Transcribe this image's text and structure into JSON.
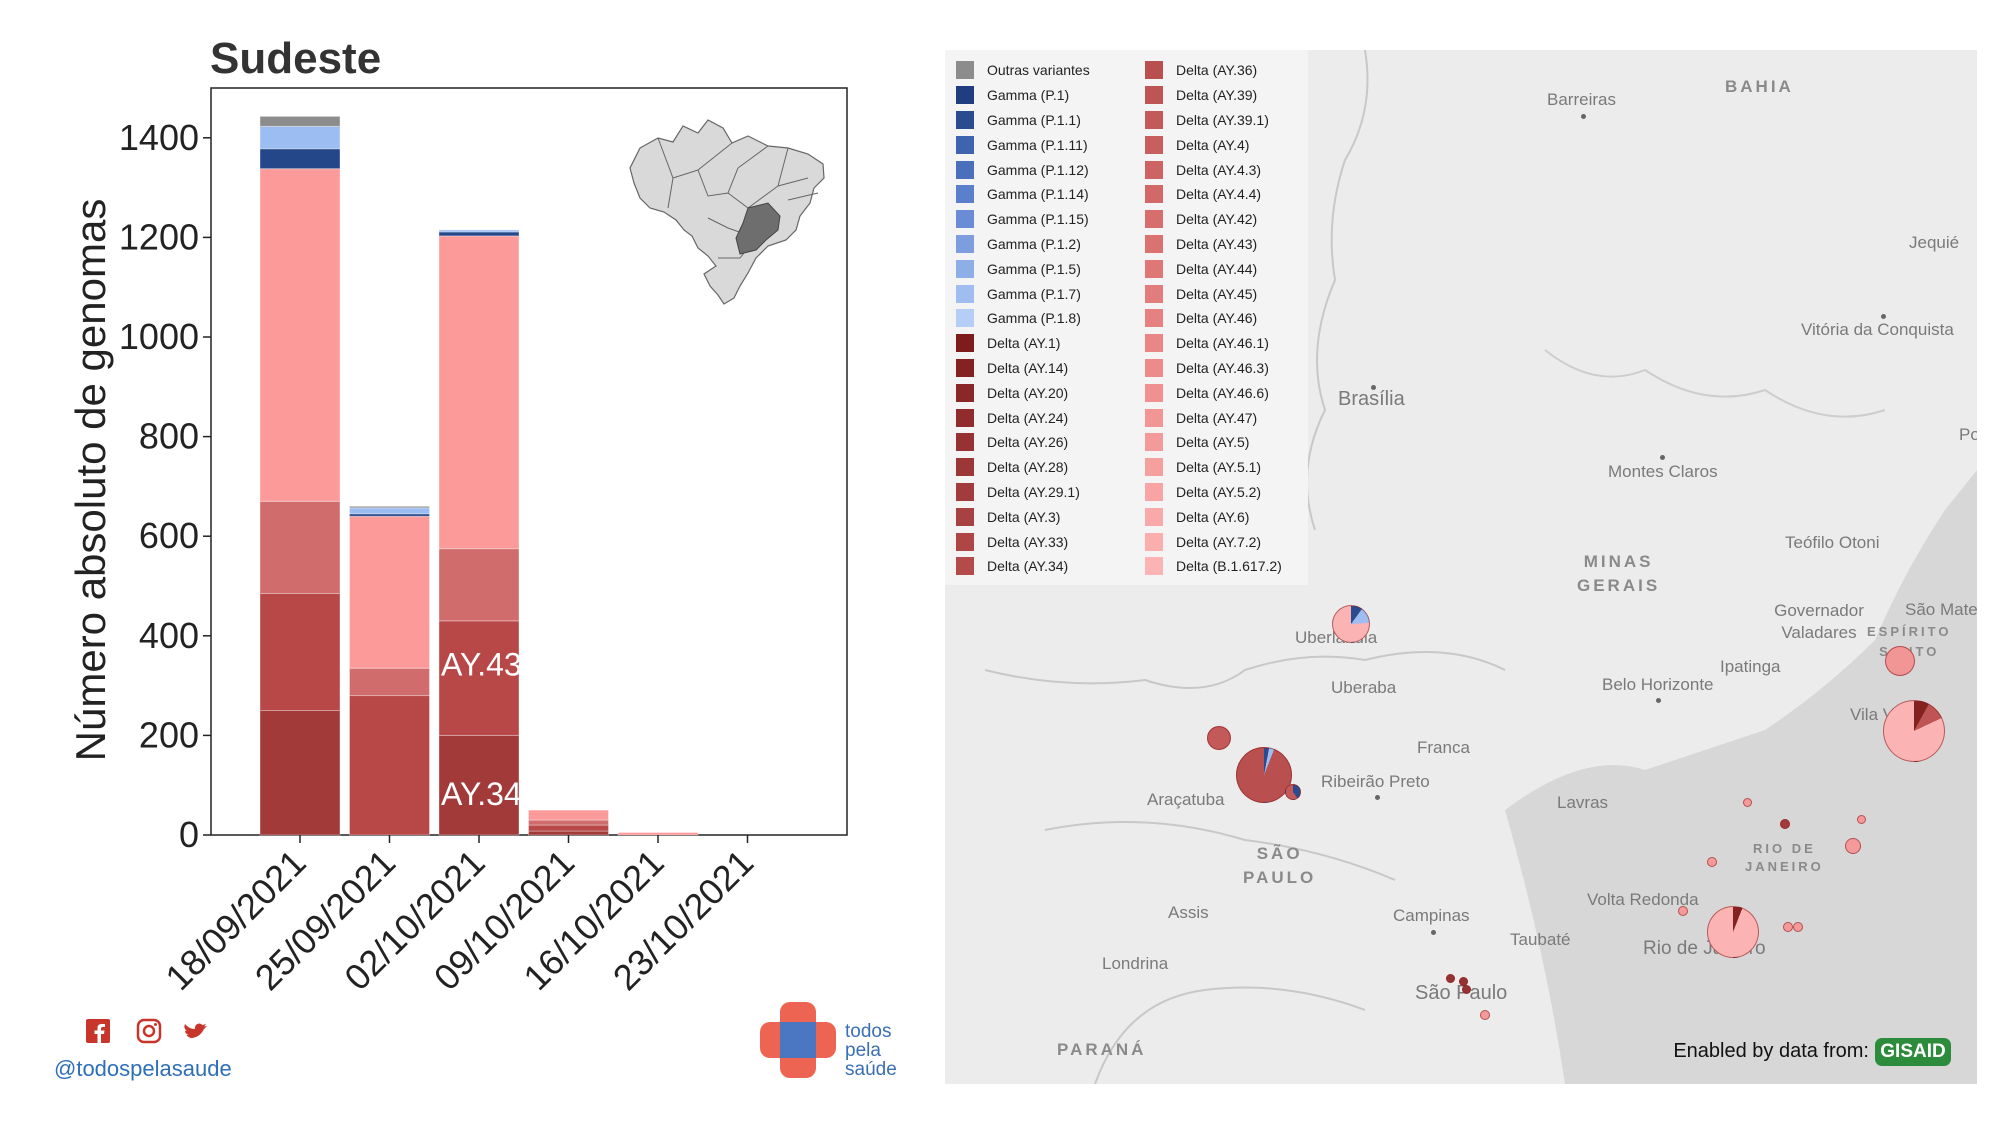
{
  "chart_data": {
    "type": "bar",
    "title": "Sudeste",
    "ylabel": "Número absoluto de genomas",
    "xlabel": "",
    "ylim": [
      0,
      1500
    ],
    "yticks": [
      "0",
      "200",
      "400",
      "600",
      "800",
      "1000",
      "1200",
      "1400"
    ],
    "categories": [
      "18/09/2021",
      "25/09/2021",
      "02/10/2021",
      "09/10/2021",
      "16/10/2021",
      "23/10/2021"
    ],
    "series": [
      {
        "name": "Delta (AY.34)",
        "color": "#a23a3a",
        "values": [
          250,
          0,
          200,
          8,
          0,
          0
        ]
      },
      {
        "name": "Delta (AY.36)",
        "color": "#b84848",
        "values": [
          235,
          280,
          230,
          12,
          0,
          0
        ]
      },
      {
        "name": "Delta (AY.43)",
        "color": "#d06c6c",
        "values": [
          185,
          55,
          145,
          10,
          0,
          0
        ]
      },
      {
        "name": "Delta (B.1.617.2)",
        "color": "#fc9a9a",
        "values": [
          668,
          305,
          628,
          20,
          5,
          0
        ]
      },
      {
        "name": "Gamma (P.1)",
        "color": "#24478a",
        "values": [
          40,
          5,
          8,
          0,
          0,
          0
        ]
      },
      {
        "name": "Gamma (P.1.7)",
        "color": "#9cbdf2",
        "values": [
          45,
          12,
          4,
          0,
          0,
          0
        ]
      },
      {
        "name": "Outras variantes",
        "color": "#8c8c8c",
        "values": [
          20,
          3,
          0,
          0,
          0,
          0
        ]
      }
    ],
    "annotations": [
      "AY.43",
      "AY.34"
    ],
    "legend": [
      {
        "label": "Outras variantes",
        "color": "#8c8c8c"
      },
      {
        "label": "Gamma (P.1)",
        "color": "#1f3d80"
      },
      {
        "label": "Gamma (P.1.1)",
        "color": "#2a4b8f"
      },
      {
        "label": "Gamma (P.1.11)",
        "color": "#3e64b0"
      },
      {
        "label": "Gamma (P.1.12)",
        "color": "#4a70bd"
      },
      {
        "label": "Gamma (P.1.14)",
        "color": "#5a7fcc"
      },
      {
        "label": "Gamma (P.1.15)",
        "color": "#6a8cd6"
      },
      {
        "label": "Gamma (P.1.2)",
        "color": "#7d9ddf"
      },
      {
        "label": "Gamma (P.1.5)",
        "color": "#8eaee8"
      },
      {
        "label": "Gamma (P.1.7)",
        "color": "#9fbdf0"
      },
      {
        "label": "Gamma (P.1.8)",
        "color": "#b5cef7"
      },
      {
        "label": "Delta (AY.1)",
        "color": "#7e1c1c"
      },
      {
        "label": "Delta (AY.14)",
        "color": "#842222"
      },
      {
        "label": "Delta (AY.20)",
        "color": "#8a2727"
      },
      {
        "label": "Delta (AY.24)",
        "color": "#902c2c"
      },
      {
        "label": "Delta (AY.26)",
        "color": "#963232"
      },
      {
        "label": "Delta (AY.28)",
        "color": "#9c3737"
      },
      {
        "label": "Delta (AY.29.1)",
        "color": "#a23c3c"
      },
      {
        "label": "Delta (AY.3)",
        "color": "#a84141"
      },
      {
        "label": "Delta (AY.33)",
        "color": "#ae4646"
      },
      {
        "label": "Delta (AY.34)",
        "color": "#b44b4b"
      },
      {
        "label": "Delta (AY.36)",
        "color": "#b94f4f"
      },
      {
        "label": "Delta (AY.39)",
        "color": "#be5454"
      },
      {
        "label": "Delta (AY.39.1)",
        "color": "#c35959"
      },
      {
        "label": "Delta (AY.4)",
        "color": "#c85e5e"
      },
      {
        "label": "Delta (AY.4.3)",
        "color": "#cd6363"
      },
      {
        "label": "Delta (AY.4.4)",
        "color": "#d26868"
      },
      {
        "label": "Delta (AY.42)",
        "color": "#d76d6d"
      },
      {
        "label": "Delta (AY.43)",
        "color": "#db7272"
      },
      {
        "label": "Delta (AY.44)",
        "color": "#df7777"
      },
      {
        "label": "Delta (AY.45)",
        "color": "#e37c7c"
      },
      {
        "label": "Delta (AY.46)",
        "color": "#e78181"
      },
      {
        "label": "Delta (AY.46.1)",
        "color": "#ea8686"
      },
      {
        "label": "Delta (AY.46.3)",
        "color": "#ed8b8b"
      },
      {
        "label": "Delta (AY.46.6)",
        "color": "#f09090"
      },
      {
        "label": "Delta (AY.47)",
        "color": "#f29595"
      },
      {
        "label": "Delta (AY.5)",
        "color": "#f49a9a"
      },
      {
        "label": "Delta (AY.5.1)",
        "color": "#f69f9f"
      },
      {
        "label": "Delta (AY.5.2)",
        "color": "#f8a4a4"
      },
      {
        "label": "Delta (AY.6)",
        "color": "#f9a9a9"
      },
      {
        "label": "Delta (AY.7.2)",
        "color": "#faaeae"
      },
      {
        "label": "Delta (B.1.617.2)",
        "color": "#fbb3b3"
      }
    ]
  },
  "map": {
    "places": [
      "Barreiras",
      "Jequié",
      "Vitória da Conquista",
      "Brasília",
      "Montes Claros",
      "Teófilo Otoni",
      "Governador Valadares",
      "São Mate",
      "Uberlândia",
      "Uberaba",
      "Ipatinga",
      "Belo Horizonte",
      "Franca",
      "Ribeirão Preto",
      "Araçatuba",
      "Lavras",
      "Assis",
      "Campinas",
      "Volta Redonda",
      "Taubaté",
      "Rio de Janeiro",
      "Londrina",
      "São Paulo",
      "Vila Velha",
      "Po"
    ],
    "regions": [
      "BAHIA",
      "MINAS\nGERAIS",
      "SÃO\nPAULO",
      "ESPÍRITO\nSANTO",
      "RIO DE\nJANEIRO",
      "PARANÁ"
    ],
    "attribution": "Enabled by data from:",
    "attribution_logo": "GISAID"
  },
  "footer": {
    "handle": "@todospelasaude",
    "brand_line1": "todos",
    "brand_line2": "pela",
    "brand_line3": "saúde"
  }
}
